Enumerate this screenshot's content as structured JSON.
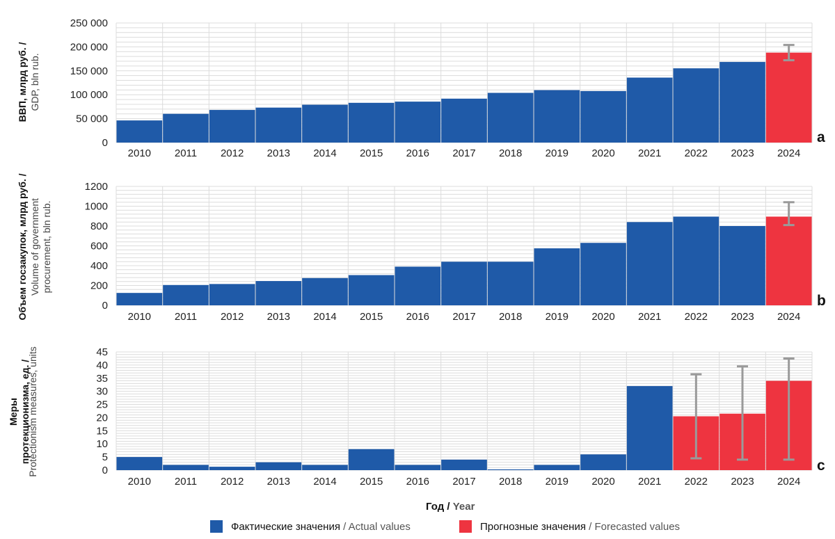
{
  "colors": {
    "actual": "#1f5aa8",
    "forecast": "#ee3440",
    "errorbar": "#9a9a9a",
    "grid": "#dcdcdc"
  },
  "chart_data": [
    {
      "type": "bar",
      "panel_label": "a",
      "ylabel_ru": "ВВП, млрд руб. /",
      "ylabel_en": "GDP, bln rub.",
      "categories": [
        "2010",
        "2011",
        "2012",
        "2013",
        "2014",
        "2015",
        "2016",
        "2017",
        "2018",
        "2019",
        "2020",
        "2021",
        "2022",
        "2023",
        "2024"
      ],
      "values": [
        46300,
        60100,
        68200,
        73100,
        79100,
        83100,
        85600,
        91800,
        103900,
        109600,
        107700,
        135800,
        155200,
        168500,
        188000
      ],
      "kind": [
        "actual",
        "actual",
        "actual",
        "actual",
        "actual",
        "actual",
        "actual",
        "actual",
        "actual",
        "actual",
        "actual",
        "actual",
        "actual",
        "actual",
        "forecast"
      ],
      "error_bars": [
        null,
        null,
        null,
        null,
        null,
        null,
        null,
        null,
        null,
        null,
        null,
        null,
        null,
        null,
        [
          172000,
          204000
        ]
      ],
      "ylim": [
        0,
        250000
      ],
      "yticks": [
        0,
        50000,
        100000,
        150000,
        200000,
        250000
      ],
      "ytick_labels": [
        "0",
        "50 000",
        "100 000",
        "150 000",
        "200 000",
        "250 000"
      ],
      "grid": true
    },
    {
      "type": "bar",
      "panel_label": "b",
      "ylabel_ru": "Объем госзакупок, млрд руб. /",
      "ylabel_en": "Volume of government procurement, bln rub.",
      "categories": [
        "2010",
        "2011",
        "2012",
        "2013",
        "2014",
        "2015",
        "2016",
        "2017",
        "2018",
        "2019",
        "2020",
        "2021",
        "2022",
        "2023",
        "2024"
      ],
      "values": [
        125,
        205,
        215,
        245,
        275,
        305,
        390,
        440,
        440,
        575,
        630,
        840,
        895,
        800,
        895
      ],
      "kind": [
        "actual",
        "actual",
        "actual",
        "actual",
        "actual",
        "actual",
        "actual",
        "actual",
        "actual",
        "actual",
        "actual",
        "actual",
        "actual",
        "actual",
        "forecast"
      ],
      "error_bars": [
        null,
        null,
        null,
        null,
        null,
        null,
        null,
        null,
        null,
        null,
        null,
        null,
        null,
        null,
        [
          810,
          1040
        ]
      ],
      "ylim": [
        0,
        1200
      ],
      "yticks": [
        0,
        200,
        400,
        600,
        800,
        1000,
        1200
      ],
      "ytick_labels": [
        "0",
        "200",
        "400",
        "600",
        "800",
        "1000",
        "1200"
      ],
      "grid": true
    },
    {
      "type": "bar",
      "panel_label": "c",
      "ylabel_ru": "Меры протекционизма, ед. /",
      "ylabel_en": "Protectionism measures, units",
      "categories": [
        "2010",
        "2011",
        "2012",
        "2013",
        "2014",
        "2015",
        "2016",
        "2017",
        "2018",
        "2019",
        "2020",
        "2021",
        "2022",
        "2023",
        "2024"
      ],
      "values": [
        5,
        2,
        1.3,
        3,
        2,
        8,
        2,
        4,
        0.3,
        2,
        6,
        32,
        20.5,
        21.5,
        34
      ],
      "kind": [
        "actual",
        "actual",
        "actual",
        "actual",
        "actual",
        "actual",
        "actual",
        "actual",
        "actual",
        "actual",
        "actual",
        "actual",
        "forecast",
        "forecast",
        "forecast"
      ],
      "error_bars": [
        null,
        null,
        null,
        null,
        null,
        null,
        null,
        null,
        null,
        null,
        null,
        null,
        [
          4.5,
          36.5
        ],
        [
          4,
          39.5
        ],
        [
          4,
          42.5
        ]
      ],
      "ylim": [
        0,
        45
      ],
      "yticks": [
        0,
        5,
        10,
        15,
        20,
        25,
        30,
        35,
        40,
        45
      ],
      "ytick_labels": [
        "0",
        "5",
        "10",
        "15",
        "20",
        "25",
        "30",
        "35",
        "40",
        "45"
      ],
      "grid": true
    }
  ],
  "x_title": {
    "ru": "Год /",
    "en": "Year"
  },
  "legend": {
    "actual": {
      "ru": "Фактические значения",
      "en": "/ Actual values"
    },
    "forecast": {
      "ru": "Прогнозные значения",
      "en": "/ Forecasted values"
    }
  }
}
